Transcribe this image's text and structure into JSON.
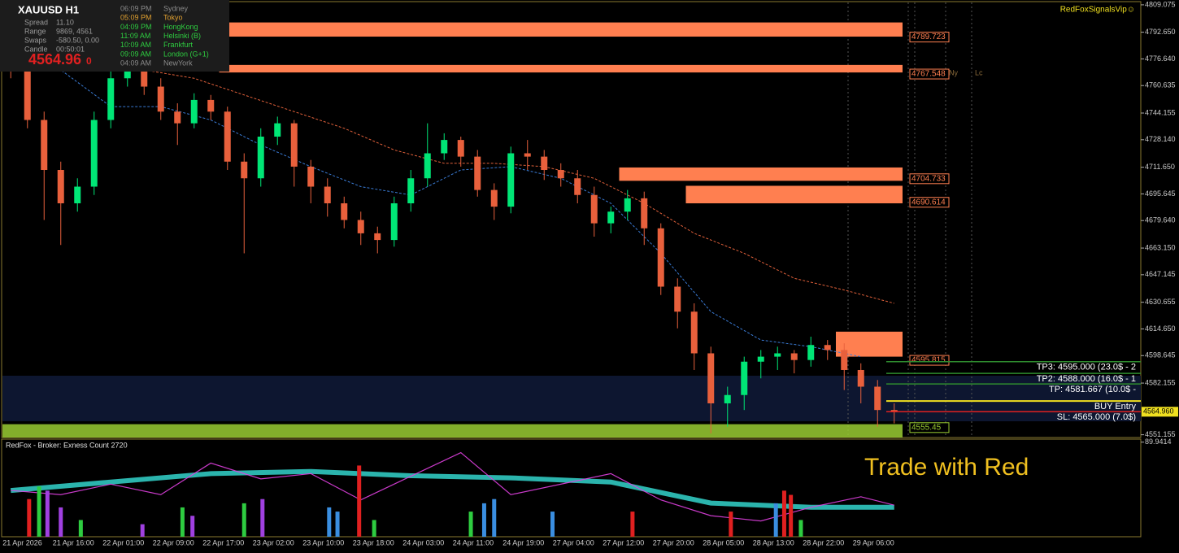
{
  "header": {
    "brand": "RedFoxSignalsVip☺"
  },
  "info_panel": {
    "symbol": "XAUUSD   H1",
    "rows": [
      [
        "Spread",
        "11.10"
      ],
      [
        "Range",
        "9869, 4561"
      ],
      [
        "Swaps",
        "-580.50, 0.00"
      ],
      [
        "Candle",
        "00:50:01"
      ]
    ],
    "price": "4564.96",
    "price_digit": "0",
    "sessions": [
      {
        "time": "06:09 PM",
        "city": "Sydney",
        "color": "#8a8a8a"
      },
      {
        "time": "05:09 PM",
        "city": "Tokyo",
        "color": "#e0a030"
      },
      {
        "time": "04:09 PM",
        "city": "HongKong",
        "color": "#2ecc40"
      },
      {
        "time": "11:09 AM",
        "city": "Helsinki  (B)",
        "color": "#2ecc40"
      },
      {
        "time": "10:09 AM",
        "city": "Frankfurt",
        "color": "#2ecc40"
      },
      {
        "time": "09:09 AM",
        "city": "London  (G+1)",
        "color": "#2ecc40"
      },
      {
        "time": "04:09 AM",
        "city": "NewYork",
        "color": "#8a8a8a"
      }
    ]
  },
  "session_marks": [
    "Ny",
    "Lc"
  ],
  "indicator_title": "RedFox -  Broker: Exness    Count  2720",
  "slogan": "Trade with Red",
  "chart_data": [
    {
      "type": "candlestick",
      "categories": [
        "21 Apr 2026",
        null,
        null,
        "21 Apr 16:00",
        null,
        null,
        "22 Apr 01:00",
        null,
        null,
        "22 Apr 09:00",
        null,
        null,
        "22 Apr 17:00",
        null,
        null,
        "23 Apr 02:00",
        null,
        null,
        "23 Apr 10:00",
        null,
        null,
        "23 Apr 18:00",
        null,
        null,
        "24 Apr 03:00",
        null,
        null,
        "24 Apr 11:00",
        null,
        null,
        "24 Apr 19:00",
        null,
        null,
        "27 Apr 04:00",
        null,
        null,
        "27 Apr 12:00",
        null,
        null,
        "27 Apr 20:00",
        null,
        null,
        "28 Apr 05:00",
        null,
        null,
        "28 Apr 13:00",
        null,
        null,
        "28 Apr 22:00",
        null,
        null,
        "29 Apr 06:00",
        null,
        null
      ],
      "open": [
        4778,
        4770,
        4740,
        4710,
        4690,
        4700,
        4740,
        4765,
        4775,
        4760,
        4745,
        4738,
        4752,
        4745,
        4715,
        4705,
        4730,
        4738,
        4712,
        4700,
        4690,
        4680,
        4672,
        4668,
        4690,
        4705,
        4720,
        4728,
        4718,
        4698,
        4688,
        4720,
        4718,
        4710,
        4705,
        4695,
        4678,
        4685,
        4693,
        4675,
        4640,
        4625,
        4600,
        4570,
        4575,
        4595,
        4598,
        4600,
        4596,
        4605,
        4602,
        4590,
        4580,
        4566
      ],
      "high": [
        4790,
        4775,
        4745,
        4715,
        4705,
        4745,
        4770,
        4782,
        4778,
        4765,
        4750,
        4756,
        4755,
        4748,
        4720,
        4735,
        4742,
        4740,
        4716,
        4705,
        4694,
        4685,
        4676,
        4694,
        4710,
        4738,
        4732,
        4730,
        4722,
        4702,
        4724,
        4728,
        4722,
        4714,
        4710,
        4700,
        4688,
        4698,
        4697,
        4678,
        4645,
        4630,
        4604,
        4580,
        4598,
        4602,
        4604,
        4602,
        4610,
        4608,
        4606,
        4594,
        4584,
        4570
      ],
      "low": [
        4765,
        4735,
        4680,
        4665,
        4685,
        4695,
        4735,
        4760,
        4755,
        4740,
        4725,
        4735,
        4740,
        4710,
        4660,
        4700,
        4725,
        4700,
        4690,
        4682,
        4675,
        4665,
        4660,
        4664,
        4685,
        4700,
        4716,
        4712,
        4694,
        4680,
        4684,
        4710,
        4704,
        4700,
        4690,
        4670,
        4672,
        4680,
        4665,
        4635,
        4615,
        4590,
        4552,
        4556,
        4566,
        4585,
        4590,
        4588,
        4592,
        4596,
        4578,
        4570,
        4556,
        4558
      ],
      "close": [
        4770,
        4740,
        4710,
        4690,
        4700,
        4740,
        4765,
        4775,
        4760,
        4745,
        4738,
        4752,
        4745,
        4715,
        4705,
        4730,
        4738,
        4712,
        4700,
        4690,
        4680,
        4672,
        4668,
        4690,
        4705,
        4720,
        4728,
        4718,
        4698,
        4688,
        4720,
        4718,
        4710,
        4705,
        4695,
        4678,
        4685,
        4693,
        4675,
        4640,
        4625,
        4600,
        4570,
        4575,
        4595,
        4598,
        4600,
        4596,
        4605,
        4602,
        4590,
        4580,
        4566,
        4564.96
      ],
      "up_color": "#00e676",
      "down_color": "#e8603c",
      "ylim": [
        4549.5,
        4810.5
      ],
      "yticks": [
        4809.075,
        {
          "value": 4792.65,
          "label": "4792.650"
        },
        {
          "value": 4776.64,
          "label": "4776.640"
        },
        4760.635,
        4744.155,
        {
          "value": 4728.14,
          "label": "4728.140"
        },
        {
          "value": 4711.65,
          "label": "4711.650"
        },
        4695.645,
        {
          "value": 4679.64,
          "label": "4679.640"
        },
        {
          "value": 4663.15,
          "label": "4663.150"
        },
        4647.145,
        4630.655,
        {
          "value": 4614.65,
          "label": "4614.650"
        },
        4598.645,
        4582.155,
        4551.155
      ],
      "overlays": [
        {
          "color": "#3a7bd5",
          "x": [
            0,
            3,
            6,
            9,
            12,
            15,
            18,
            21,
            24,
            27,
            30,
            33,
            36,
            39,
            42,
            45,
            48,
            51
          ],
          "values": [
            4785,
            4770,
            4748,
            4748,
            4740,
            4725,
            4712,
            4700,
            4695,
            4710,
            4712,
            4705,
            4690,
            4660,
            4625,
            4608,
            4604,
            4598
          ]
        },
        {
          "color": "#e0603a",
          "x": [
            8,
            11,
            14,
            17,
            20,
            23,
            26,
            29,
            32,
            35,
            38,
            41,
            44,
            47,
            50,
            53
          ],
          "values": [
            4770,
            4765,
            4755,
            4745,
            4735,
            4722,
            4714,
            4714,
            4712,
            4705,
            4690,
            4672,
            4660,
            4645,
            4638,
            4630
          ]
        }
      ],
      "zones": [
        {
          "start": 13,
          "low": 4790,
          "high": 4798.5,
          "price": 4789.723,
          "color": "#ff7f50"
        },
        {
          "start": 13,
          "low": 4768.5,
          "high": 4773,
          "price": 4767.548,
          "color": "#ff7f50"
        },
        {
          "start": 37,
          "low": 4703.5,
          "high": 4711.5,
          "price": 4704.733,
          "color": "#ff7f50"
        },
        {
          "start": 41,
          "low": 4690,
          "high": 4700.5,
          "price": 4690.614,
          "color": "#ff7f50"
        },
        {
          "start": 50,
          "low": 4598,
          "high": 4613,
          "price": 4595.815,
          "color": "#ff7f50"
        },
        {
          "start": 0,
          "low": 4549.5,
          "high": 4557.5,
          "price": 4555.45,
          "color": "#9acd32"
        }
      ],
      "levels": [
        {
          "label": "TP3: 4595.000 (23.0$ - 2",
          "value": 4595,
          "color": "#2e8b2e"
        },
        {
          "label": "TP2: 4588.000 (16.0$ - 1",
          "value": 4588,
          "color": "#2e8b2e"
        },
        {
          "label": "TP: 4581.667 (10.0$ -",
          "value": 4581.667,
          "color": "#2e8b2e"
        },
        {
          "label": "BUY Entry",
          "value": 4571.4,
          "color": "#f0e020"
        },
        {
          "label": "SL: 4565.000 (7.0$)",
          "value": 4565,
          "color": "#e02020"
        }
      ],
      "current_price": {
        "value": 4564.96,
        "label": "4564.960"
      }
    },
    {
      "type": "bar",
      "x": [
        1.1,
        1.7,
        2.2,
        3.0,
        4.2,
        7.9,
        10.3,
        10.9,
        14.0,
        15.1,
        19.1,
        19.6,
        20.9,
        21.8,
        27.6,
        28.4,
        29.0,
        32.5,
        37.3,
        43.2,
        45.9,
        46.4,
        46.8,
        47.4
      ],
      "values": [
        35.8,
        47.8,
        43.8,
        27.9,
        15.9,
        11.9,
        27.9,
        19.9,
        31.8,
        35.8,
        27.9,
        23.9,
        67.7,
        15.9,
        23.9,
        31.8,
        35.8,
        23.9,
        23.9,
        23.9,
        31.8,
        43.8,
        39.8,
        15.9
      ],
      "colors": [
        "#e02020",
        "#2ecc40",
        "#a040e0",
        "#a040e0",
        "#2ecc40",
        "#a040e0",
        "#2ecc40",
        "#a040e0",
        "#2ecc40",
        "#a040e0",
        "#3a8ee0",
        "#3a8ee0",
        "#e02020",
        "#2ecc40",
        "#2ecc40",
        "#3a8ee0",
        "#3a8ee0",
        "#3a8ee0",
        "#e02020",
        "#e02020",
        "#3a8ee0",
        "#e02020",
        "#e02020",
        "#2ecc40"
      ],
      "ylim": [
        0,
        92
      ],
      "yticks": [
        89.9414
      ],
      "ribbons": [
        {
          "color": "#30c8c0",
          "x": [
            0,
            6,
            12,
            18,
            24,
            30,
            36,
            42,
            48,
            53
          ],
          "values": [
            44,
            52,
            60,
            62,
            58,
            56,
            52,
            32,
            28,
            28
          ]
        },
        {
          "color": "#e040e0",
          "x": [
            0,
            3,
            6,
            9,
            12,
            15,
            18,
            21,
            27,
            30,
            36,
            39,
            42,
            45,
            48,
            51,
            53
          ],
          "values": [
            44,
            40,
            50,
            40,
            70,
            55,
            60,
            35,
            80,
            40,
            60,
            35,
            20,
            15,
            28,
            38,
            30
          ]
        }
      ]
    }
  ]
}
